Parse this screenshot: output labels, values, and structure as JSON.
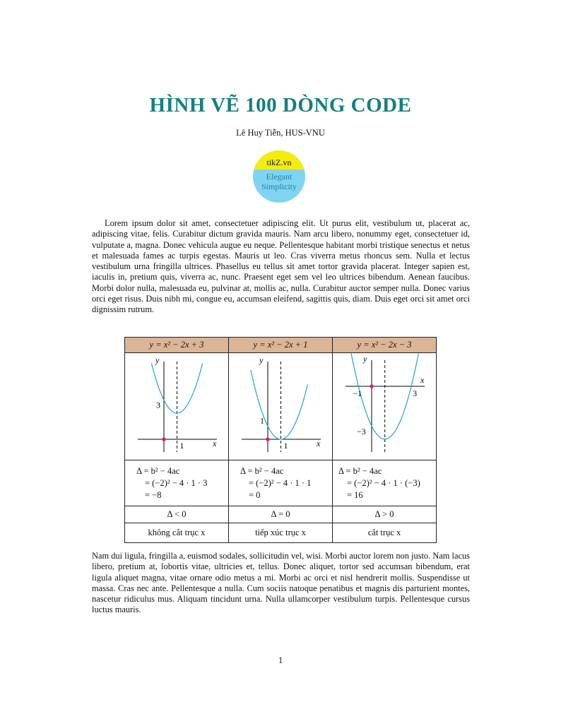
{
  "title": "HÌNH VẼ 100 DÒNG CODE",
  "author": "Lê Huy Tiễn, HUS-VNU",
  "logo": {
    "top": "tikZ.vn",
    "line1": "Elegant",
    "line2": "Simplicity",
    "colors": {
      "top": "#f4ec0a",
      "bottom": "#7fd4f2"
    }
  },
  "paragraph1": "Lorem ipsum dolor sit amet, consectetuer adipiscing elit. Ut purus elit, vestibulum ut, placerat ac, adipiscing vitae, felis. Curabitur dictum gravida mauris. Nam arcu libero, nonummy eget, consectetuer id, vulputate a, magna. Donec vehicula augue eu neque. Pellentesque habitant morbi tristique senectus et netus et malesuada fames ac turpis egestas. Mauris ut leo. Cras viverra metus rhoncus sem. Nulla et lectus vestibulum urna fringilla ultrices. Phasellus eu tellus sit amet tortor gravida placerat. Integer sapien est, iaculis in, pretium quis, viverra ac, nunc. Praesent eget sem vel leo ultrices bibendum. Aenean faucibus. Morbi dolor nulla, malesuada eu, pulvinar at, mollis ac, nulla. Curabitur auctor semper nulla. Donec varius orci eget risus. Duis nibh mi, congue eu, accumsan eleifend, sagittis quis, diam. Duis eget orci sit amet orci dignissim rutrum.",
  "table": {
    "columns": [
      {
        "header": "y = x² − 2x + 3",
        "a": 1,
        "b": -2,
        "c": 3,
        "labels": {
          "y": "y",
          "x": "x",
          "yint": "3",
          "vertex_x": "1"
        },
        "calc": [
          "Δ = b² − 4ac",
          "= (−2)² − 4 · 1 · 3",
          "= −8"
        ],
        "compare": "Δ < 0",
        "desc": "không cắt trục x"
      },
      {
        "header": "y = x² − 2x + 1",
        "a": 1,
        "b": -2,
        "c": 1,
        "labels": {
          "y": "y",
          "x": "x",
          "yint": "1",
          "vertex_x": "1"
        },
        "calc": [
          "Δ = b² − 4ac",
          "= (−2)² − 4 · 1 · 1",
          "= 0"
        ],
        "compare": "Δ = 0",
        "desc": "tiếp xúc trục x"
      },
      {
        "header": "y = x² − 2x − 3",
        "a": 1,
        "b": -2,
        "c": -3,
        "labels": {
          "y": "y",
          "x": "x",
          "yint": "−3",
          "root1": "−1",
          "root2": "3"
        },
        "calc": [
          "Δ = b² − 4ac",
          "= (−2)² − 4 · 1 · (−3)",
          "= 16"
        ],
        "compare": "Δ > 0",
        "desc": "cắt trục x"
      }
    ],
    "colors": {
      "header": "#dcb597",
      "curve": "#1aa7d0",
      "origin_dot": "#e0157a"
    }
  },
  "paragraph2": "Nam dui ligula, fringilla a, euismod sodales, sollicitudin vel, wisi. Morbi auctor lorem non justo. Nam lacus libero, pretium at, lobortis vitae, ultricies et, tellus. Donec aliquet, tortor sed accumsan bibendum, erat ligula aliquet magna, vitae ornare odio metus a mi. Morbi ac orci et nisl hendrerit mollis. Suspendisse ut massa. Cras nec ante. Pellentesque a nulla. Cum sociis natoque penatibus et magnis dis parturient montes, nascetur ridiculus mus. Aliquam tincidunt urna. Nulla ullamcorper vestibulum turpis. Pellentesque cursus luctus mauris.",
  "page_number": "1"
}
